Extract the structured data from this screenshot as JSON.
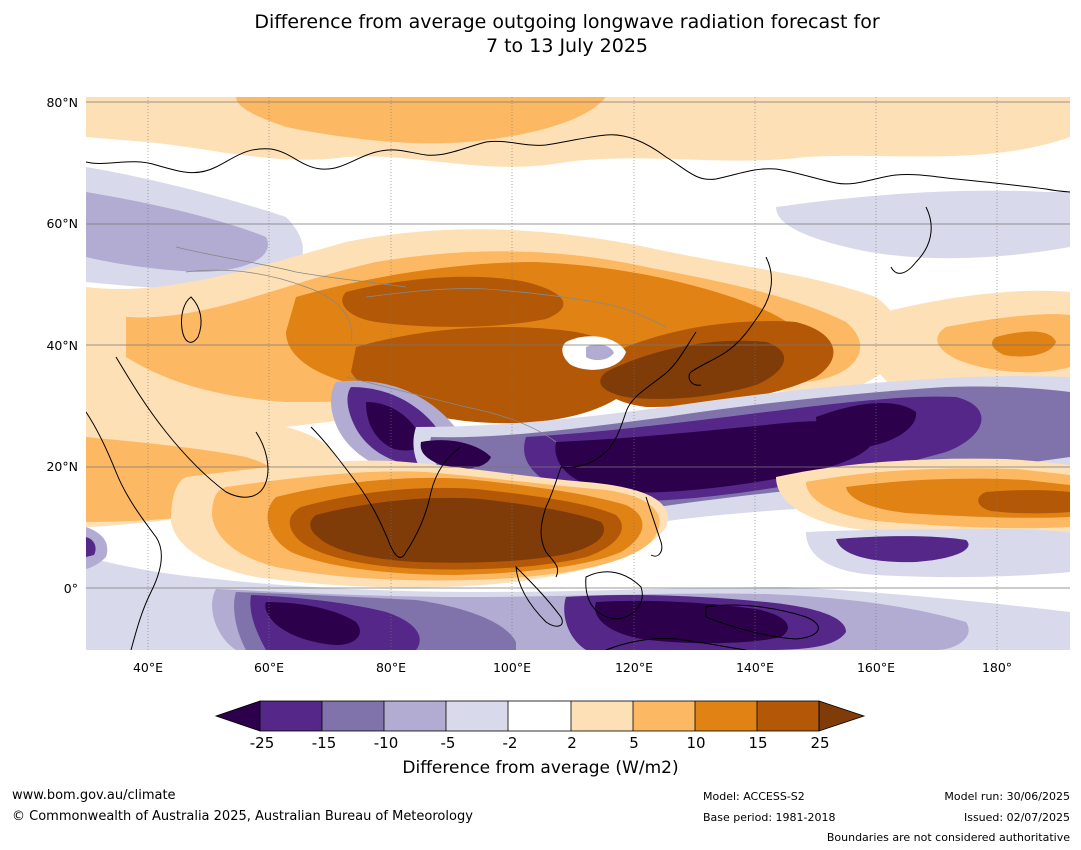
{
  "title": {
    "line1": "Difference from average outgoing longwave radiation forecast for",
    "line2": "7 to 13 July 2025"
  },
  "map": {
    "lat_labels": [
      "80°N",
      "60°N",
      "40°N",
      "20°N",
      "0°"
    ],
    "lon_labels": [
      "40°E",
      "60°E",
      "80°E",
      "100°E",
      "120°E",
      "140°E",
      "160°E",
      "180°"
    ],
    "colors": {
      "lt_m25": "#2d004b",
      "m25_m15": "#542788",
      "m15_m10": "#8073ac",
      "m10_m5": "#b2abd2",
      "m5_m2": "#d8daeb",
      "m2_2": "#ffffff",
      "2_5": "#fee0b6",
      "5_10": "#fdb863",
      "10_15": "#e08214",
      "15_25": "#b35806",
      "gt_25": "#7f3b08",
      "coast": "#000000",
      "border": "#888888"
    }
  },
  "colorbar": {
    "ticks": [
      "-25",
      "-15",
      "-10",
      "-5",
      "-2",
      "2",
      "5",
      "10",
      "15",
      "25"
    ],
    "label": "Difference from average (W/m2)"
  },
  "footer": {
    "url": "www.bom.gov.au/climate",
    "copyright": "© Commonwealth of Australia 2025, Australian Bureau of Meteorology",
    "model": "Model: ACCESS-S2",
    "base_period": "Base period: 1981-2018",
    "model_run": "Model run: 30/06/2025",
    "issued": "Issued: 02/07/2025",
    "disclaimer": "Boundaries are not considered authoritative"
  }
}
